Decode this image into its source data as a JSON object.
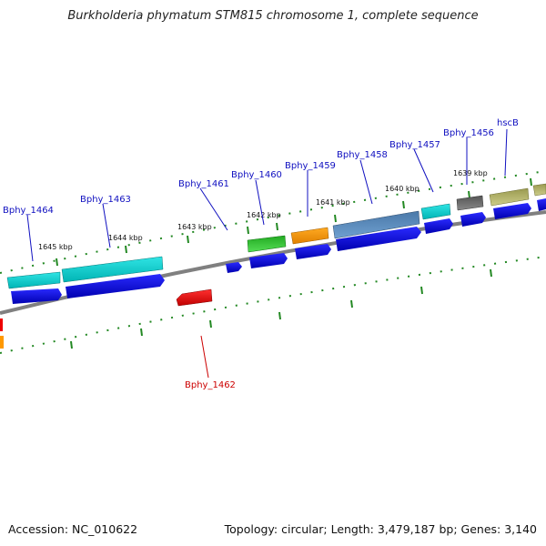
{
  "title": "Burkholderia phymatum STM815 chromosome 1, complete sequence",
  "footer": {
    "accession": "Accession: NC_010622",
    "summary": "Topology: circular; Length: 3,479,187 bp; Genes: 3,140"
  },
  "scale_labels": [
    "1645 kbp",
    "1644 kbp",
    "1643 kbp",
    "1642 kbp",
    "1641 kbp",
    "1640 kbp",
    "1639 kbp"
  ],
  "gene_labels": [
    "Bphy_1464",
    "Bphy_1463",
    "Bphy_1461",
    "Bphy_1460",
    "Bphy_1459",
    "Bphy_1458",
    "Bphy_1457",
    "Bphy_1456",
    "hscB",
    "Bphy_1462"
  ],
  "colors": {
    "label_blue": "#1010c0",
    "label_red": "#cc0000",
    "tick_green": "#228822",
    "backbone": "#808080",
    "cds": "#0000e6",
    "cyan": "#00d2d2",
    "green": "#33cc33",
    "orange": "#ff9900",
    "steelblue": "#4682b4",
    "gray": "#666666",
    "khaki": "#b3b36b",
    "red": "#ee0000"
  }
}
